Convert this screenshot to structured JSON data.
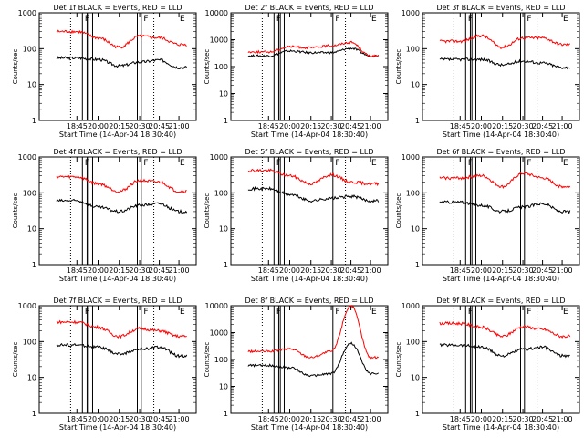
{
  "figure": {
    "time_axis_label": "Start Time (14-Apr-04 18:30:40)",
    "y_axis_label": "Counts/sec",
    "x_tick_labels": [
      "18:45",
      "20:00",
      "20:15",
      "20:30",
      "20:45",
      "21:00"
    ],
    "y_tick_labels_short": [
      "1",
      "10",
      "100",
      "1000"
    ],
    "y_tick_labels_tall": [
      "1",
      "10",
      "100",
      "1000",
      "10000"
    ],
    "interval_markers": [
      "F",
      "F",
      "E"
    ],
    "colors": {
      "events": "#000000",
      "lld": "#ff0000",
      "frame": "#000000"
    }
  },
  "chart_data": [
    {
      "type": "line",
      "title": "Det 1f BLACK = Events, RED = LLD",
      "xlabel": "Start Time (14-Apr-04 18:30:40)",
      "ylabel": "Counts/sec",
      "x": [
        "18:45",
        "20:00",
        "20:15",
        "20:30",
        "20:45",
        "21:00"
      ],
      "y_scale": "log",
      "ylim": [
        1,
        1000
      ],
      "series": [
        {
          "name": "Events",
          "color": "#000000",
          "values": [
            55,
            50,
            33,
            42,
            48,
            30
          ]
        },
        {
          "name": "LLD",
          "color": "#ff0000",
          "values": [
            300,
            200,
            110,
            220,
            200,
            130
          ]
        }
      ]
    },
    {
      "type": "line",
      "title": "Det 2f BLACK = Events, RED = LLD",
      "xlabel": "Start Time (14-Apr-04 18:30:40)",
      "ylabel": "Counts/sec",
      "x": [
        "18:45",
        "20:00",
        "20:15",
        "20:30",
        "20:45",
        "21:00"
      ],
      "y_scale": "log",
      "ylim": [
        1,
        10000
      ],
      "series": [
        {
          "name": "Events",
          "color": "#000000",
          "values": [
            250,
            380,
            330,
            330,
            480,
            250
          ]
        },
        {
          "name": "LLD",
          "color": "#ff0000",
          "values": [
            350,
            550,
            500,
            600,
            800,
            250
          ]
        }
      ]
    },
    {
      "type": "line",
      "title": "Det 3f BLACK = Events, RED = LLD",
      "xlabel": "Start Time (14-Apr-04 18:30:40)",
      "ylabel": "Counts/sec",
      "x": [
        "18:45",
        "20:00",
        "20:15",
        "20:30",
        "20:45",
        "21:00"
      ],
      "y_scale": "log",
      "ylim": [
        1,
        1000
      ],
      "series": [
        {
          "name": "Events",
          "color": "#000000",
          "values": [
            50,
            50,
            35,
            45,
            40,
            30
          ]
        },
        {
          "name": "LLD",
          "color": "#ff0000",
          "values": [
            160,
            230,
            110,
            200,
            200,
            130
          ]
        }
      ]
    },
    {
      "type": "line",
      "title": "Det 4f BLACK = Events, RED = LLD",
      "xlabel": "Start Time (14-Apr-04 18:30:40)",
      "ylabel": "Counts/sec",
      "x": [
        "18:45",
        "20:00",
        "20:15",
        "20:30",
        "20:45",
        "21:00"
      ],
      "y_scale": "log",
      "ylim": [
        1,
        1000
      ],
      "series": [
        {
          "name": "Events",
          "color": "#000000",
          "values": [
            60,
            40,
            30,
            45,
            50,
            30
          ]
        },
        {
          "name": "LLD",
          "color": "#ff0000",
          "values": [
            280,
            180,
            110,
            220,
            200,
            110
          ]
        }
      ]
    },
    {
      "type": "line",
      "title": "Det 5f BLACK = Events, RED = LLD",
      "xlabel": "Start Time (14-Apr-04 18:30:40)",
      "ylabel": "Counts/sec",
      "x": [
        "18:45",
        "20:00",
        "20:15",
        "20:30",
        "20:45",
        "21:00"
      ],
      "y_scale": "log",
      "ylim": [
        1,
        1000
      ],
      "series": [
        {
          "name": "Events",
          "color": "#000000",
          "values": [
            130,
            90,
            60,
            70,
            80,
            60
          ]
        },
        {
          "name": "LLD",
          "color": "#ff0000",
          "values": [
            420,
            300,
            180,
            320,
            200,
            180
          ]
        }
      ]
    },
    {
      "type": "line",
      "title": "Det 6f BLACK = Events, RED = LLD",
      "xlabel": "Start Time (14-Apr-04 18:30:40)",
      "ylabel": "Counts/sec",
      "x": [
        "18:45",
        "20:00",
        "20:15",
        "20:30",
        "20:45",
        "21:00"
      ],
      "y_scale": "log",
      "ylim": [
        1,
        1000
      ],
      "series": [
        {
          "name": "Events",
          "color": "#000000",
          "values": [
            55,
            45,
            30,
            40,
            50,
            30
          ]
        },
        {
          "name": "LLD",
          "color": "#ff0000",
          "values": [
            260,
            300,
            150,
            350,
            260,
            150
          ]
        }
      ]
    },
    {
      "type": "line",
      "title": "Det 7f BLACK = Events, RED = LLD",
      "xlabel": "Start Time (14-Apr-04 18:30:40)",
      "ylabel": "Counts/sec",
      "x": [
        "18:45",
        "20:00",
        "20:15",
        "20:30",
        "20:45",
        "21:00"
      ],
      "y_scale": "log",
      "ylim": [
        1,
        1000
      ],
      "series": [
        {
          "name": "Events",
          "color": "#000000",
          "values": [
            80,
            70,
            45,
            60,
            70,
            40
          ]
        },
        {
          "name": "LLD",
          "color": "#ff0000",
          "values": [
            350,
            250,
            140,
            230,
            200,
            140
          ]
        }
      ]
    },
    {
      "type": "line",
      "title": "Det 8f BLACK = Events, RED = LLD",
      "xlabel": "Start Time (14-Apr-04 18:30:40)",
      "ylabel": "Counts/sec",
      "x": [
        "18:45",
        "20:00",
        "20:15",
        "20:30",
        "20:45",
        "21:00"
      ],
      "y_scale": "log",
      "ylim": [
        1,
        10000
      ],
      "series": [
        {
          "name": "Events",
          "color": "#000000",
          "values": [
            60,
            50,
            25,
            30,
            400,
            30
          ]
        },
        {
          "name": "LLD",
          "color": "#ff0000",
          "values": [
            200,
            250,
            120,
            200,
            10000,
            120
          ]
        }
      ]
    },
    {
      "type": "line",
      "title": "Det 9f BLACK = Events, RED = LLD",
      "xlabel": "Start Time (14-Apr-04 18:30:40)",
      "ylabel": "Counts/sec",
      "x": [
        "18:45",
        "20:00",
        "20:15",
        "20:30",
        "20:45",
        "21:00"
      ],
      "y_scale": "log",
      "ylim": [
        1,
        1000
      ],
      "series": [
        {
          "name": "Events",
          "color": "#000000",
          "values": [
            80,
            70,
            40,
            60,
            70,
            40
          ]
        },
        {
          "name": "LLD",
          "color": "#ff0000",
          "values": [
            320,
            250,
            140,
            260,
            220,
            140
          ]
        }
      ]
    }
  ]
}
